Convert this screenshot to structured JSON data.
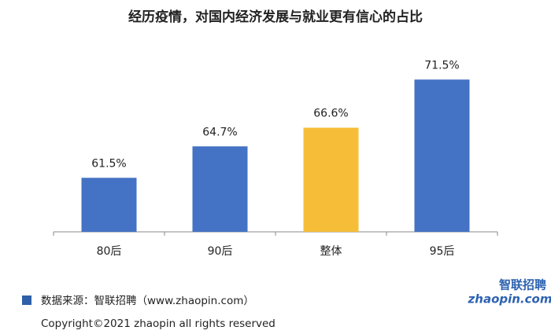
{
  "chart_data": {
    "type": "bar",
    "title": "经历疫情，对国内经济发展与就业更有信心的占比",
    "categories": [
      "80后",
      "90后",
      "整体",
      "95后"
    ],
    "values": [
      61.5,
      64.7,
      66.6,
      71.5
    ],
    "value_labels": [
      "61.5%",
      "64.7%",
      "66.6%",
      "71.5%"
    ],
    "colors": [
      "#4472c4",
      "#4472c4",
      "#f6be38",
      "#4472c4"
    ],
    "ylim": [
      56,
      74
    ],
    "legend_color": "#2e5fa8",
    "source": "数据来源：智联招聘（www.zhaopin.com）",
    "copyright": "Copyright©2021 zhaopin all rights reserved",
    "logo": {
      "top": "智联招聘",
      "bottom": "zhaopin.com"
    }
  }
}
